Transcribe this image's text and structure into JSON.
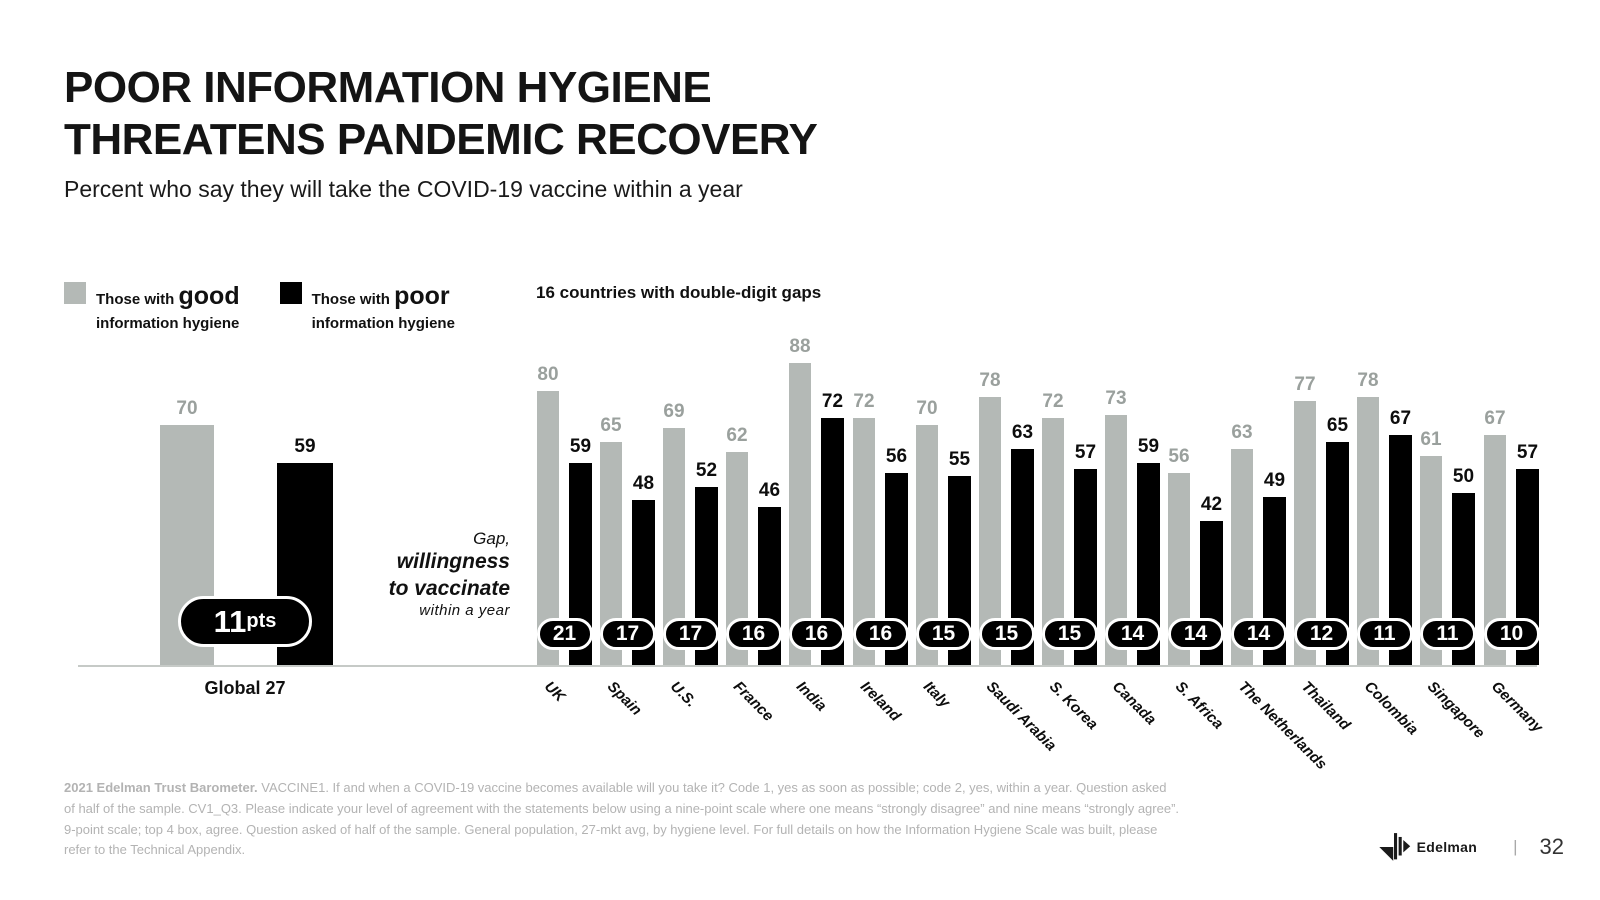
{
  "slide": {
    "title_line1": "POOR INFORMATION HYGIENE",
    "title_line2": "THREATENS PANDEMIC RECOVERY",
    "subtitle": "Percent who say they will take the COVID-19 vaccine within a year",
    "page_number": "32"
  },
  "legend": {
    "good": {
      "prefix": "Those with ",
      "emphasis": "good",
      "suffix": "information hygiene"
    },
    "poor": {
      "prefix": "Those with ",
      "emphasis": "poor",
      "suffix": "information hygiene"
    }
  },
  "chart_heading": "16 countries with double-digit gaps",
  "gap_note": {
    "line1": "Gap,",
    "line2": "willingness",
    "line3": "to vaccinate",
    "line4": "within  a year"
  },
  "global_badge": {
    "value": "11",
    "unit": "pts"
  },
  "footer": {
    "lead": "2021 Edelman Trust Barometer.",
    "rest": " VACCINE1. If and when a COVID-19 vaccine becomes available will you take it? Code 1, yes as soon as possible; code 2, yes, within a year. Question asked\nof half of the sample. CV1_Q3. Please indicate your level of agreement with the statements below using a nine-point scale where one means “strongly disagree” and nine means “strongly agree”.\n9-point scale; top 4 box, agree. Question asked of half of the sample. General population, 27-mkt avg, by hygiene level. For full details on how the Information Hygiene Scale was built, please\nrefer to the Technical Appendix."
  },
  "brand": {
    "logo_text": "Edelman",
    "separator": "|"
  },
  "colors": {
    "bar_good": "#b4b9b6",
    "bar_poor": "#000000",
    "good_value_label": "#9aa09d",
    "poor_value_label": "#0d0d0d",
    "axis_line": "#c6cac7",
    "footnote_text": "#b3b3b3",
    "badge_bg": "#000000",
    "badge_border": "#ffffff"
  },
  "chart_data": {
    "type": "bar",
    "title": "Percent who say they will take the COVID-19 vaccine within a year",
    "ylim": [
      0,
      100
    ],
    "grid": false,
    "legend_position": "top-left",
    "series_full_names": [
      "Those with good information hygiene",
      "Those with poor information hygiene"
    ],
    "global": {
      "label": "Global 27",
      "good": 70,
      "poor": 59,
      "gap_label": "11pts"
    },
    "categories": [
      "UK",
      "Spain",
      "U.S.",
      "France",
      "India",
      "Ireland",
      "Italy",
      "Saudi Arabia",
      "S. Korea",
      "Canada",
      "S. Africa",
      "The Netherlands",
      "Thailand",
      "Colombia",
      "Singapore",
      "Germany"
    ],
    "series": [
      {
        "name": "good",
        "values": [
          80,
          65,
          69,
          62,
          88,
          72,
          70,
          78,
          72,
          73,
          56,
          63,
          77,
          78,
          61,
          67
        ]
      },
      {
        "name": "poor",
        "values": [
          59,
          48,
          52,
          46,
          72,
          56,
          55,
          63,
          57,
          59,
          42,
          49,
          65,
          67,
          50,
          57
        ]
      }
    ],
    "gaps": [
      21,
      17,
      17,
      16,
      16,
      16,
      15,
      15,
      15,
      14,
      14,
      14,
      12,
      11,
      11,
      10
    ]
  }
}
